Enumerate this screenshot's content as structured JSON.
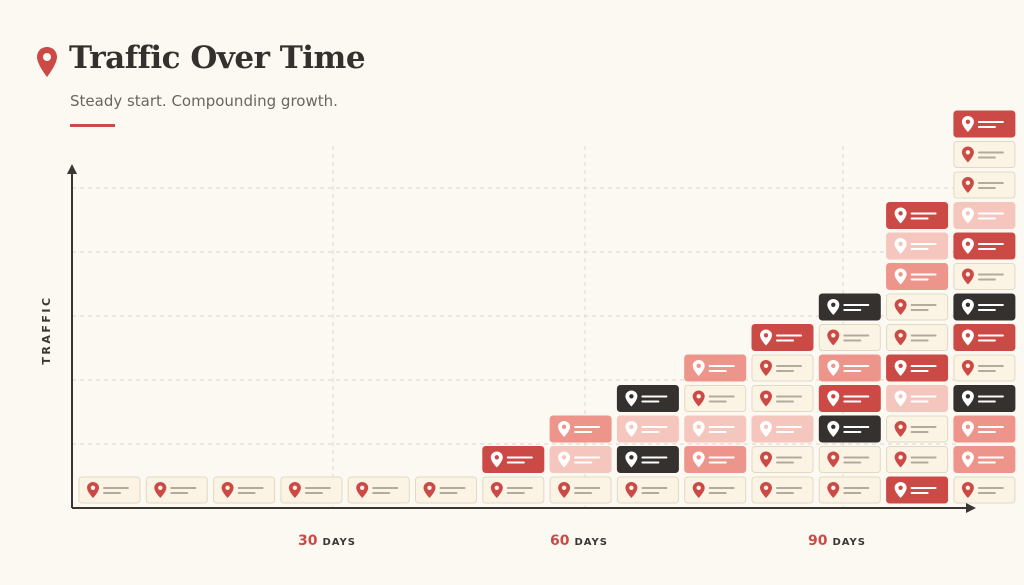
{
  "header": {
    "title": "Traffic Over Time",
    "subtitle": "Steady start. Compounding growth."
  },
  "colors": {
    "accent": "#cc4a45",
    "dark": "#35312f",
    "light_red": "#ee958b",
    "pale_red": "#f5c6bd",
    "cream": "#fbf4e4",
    "cream_border": "#e3d8c2",
    "axis": "#3a3633",
    "grid": "#ddd6cb"
  },
  "icons": {
    "card": "map-pin-icon",
    "header": "map-pin-icon"
  },
  "chart_data": {
    "type": "bar",
    "style": "stacked-card-units",
    "ylabel": "TRAFFIC",
    "xlabel": "",
    "x_ticks": [
      {
        "value": "30",
        "unit": "DAYS"
      },
      {
        "value": "60",
        "unit": "DAYS"
      },
      {
        "value": "90",
        "unit": "DAYS"
      }
    ],
    "grid": "dashed",
    "columns": [
      {
        "stack": [
          "cream"
        ]
      },
      {
        "stack": [
          "cream"
        ]
      },
      {
        "stack": [
          "cream"
        ]
      },
      {
        "stack": [
          "cream"
        ]
      },
      {
        "stack": [
          "cream"
        ]
      },
      {
        "stack": [
          "cream"
        ]
      },
      {
        "stack": [
          "cream",
          "red"
        ]
      },
      {
        "stack": [
          "cream",
          "pale_red",
          "light_red"
        ]
      },
      {
        "stack": [
          "cream",
          "dark",
          "pale_red",
          "dark"
        ]
      },
      {
        "stack": [
          "cream",
          "light_red",
          "pale_red",
          "cream",
          "light_red"
        ]
      },
      {
        "stack": [
          "cream",
          "cream",
          "pale_red",
          "cream",
          "cream",
          "red"
        ]
      },
      {
        "stack": [
          "cream",
          "cream",
          "dark",
          "red",
          "light_red",
          "cream",
          "dark"
        ]
      },
      {
        "stack": [
          "red",
          "cream",
          "cream",
          "pale_red",
          "red",
          "cream",
          "cream",
          "light_red",
          "pale_red",
          "red"
        ]
      },
      {
        "stack": [
          "cream",
          "light_red",
          "light_red",
          "dark",
          "cream",
          "red",
          "dark",
          "cream",
          "red",
          "pale_red",
          "cream",
          "cream",
          "red"
        ]
      }
    ]
  }
}
